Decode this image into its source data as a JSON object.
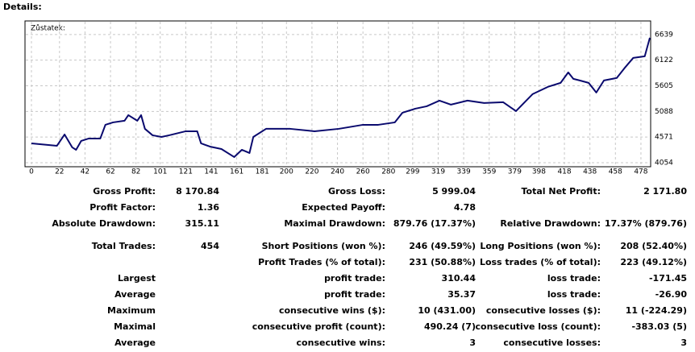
{
  "header": {
    "title": "Details:"
  },
  "chart_data": {
    "type": "line",
    "label": "Zůstatek:",
    "x": [
      0,
      20,
      26,
      32,
      35,
      39,
      45,
      54,
      58,
      64,
      73,
      76,
      83,
      86,
      89,
      95,
      102,
      108,
      121,
      130,
      133,
      140,
      149,
      159,
      165,
      171,
      174,
      184,
      203,
      222,
      241,
      260,
      272,
      285,
      291,
      301,
      310,
      320,
      329,
      342,
      355,
      370,
      380,
      393,
      405,
      415,
      421,
      425,
      430,
      437,
      443,
      449,
      459,
      465,
      472,
      481,
      485
    ],
    "series": [
      {
        "name": "Zůstatek",
        "color": "#0a0a6e",
        "values": [
          4444,
          4395,
          4623,
          4363,
          4314,
          4493,
          4542,
          4542,
          4818,
          4867,
          4900,
          5013,
          4900,
          5013,
          4737,
          4607,
          4574,
          4607,
          4688,
          4688,
          4444,
          4379,
          4330,
          4168,
          4314,
          4249,
          4574,
          4737,
          4737,
          4688,
          4737,
          4818,
          4818,
          4867,
          5062,
          5143,
          5192,
          5306,
          5225,
          5306,
          5257,
          5273,
          5095,
          5436,
          5583,
          5664,
          5875,
          5745,
          5713,
          5664,
          5469,
          5713,
          5762,
          5957,
          6168,
          6200,
          6574
        ]
      }
    ],
    "xlim": [
      0,
      485
    ],
    "xticks": [
      0,
      22,
      42,
      62,
      82,
      101,
      121,
      141,
      161,
      181,
      200,
      220,
      240,
      260,
      280,
      299,
      319,
      339,
      359,
      379,
      398,
      418,
      438,
      458,
      478
    ],
    "ylim": [
      4005,
      6880
    ],
    "yticks": [
      4054,
      4571,
      5088,
      5605,
      6122,
      6639
    ],
    "grid": true
  },
  "table": {
    "rows": [
      [
        "Gross Profit:",
        "8 170.84",
        "Gross Loss:",
        "5 999.04",
        "Total Net Profit:",
        "2 171.80"
      ],
      [
        "Profit Factor:",
        "1.36",
        "Expected Payoff:",
        "4.78",
        null,
        null
      ],
      [
        "Absolute Drawdown:",
        "315.11",
        "Maximal Drawdown:",
        "879.76 (17.37%)",
        "Relative Drawdown:",
        "17.37% (879.76)"
      ],
      [
        "Total Trades:",
        "454",
        "Short Positions (won %):",
        "246 (49.59%)",
        "Long Positions (won %):",
        "208 (52.40%)"
      ],
      [
        null,
        null,
        "Profit Trades (% of total):",
        "231 (50.88%)",
        "Loss trades (% of total):",
        "223 (49.12%)"
      ],
      [
        "Largest",
        null,
        "profit trade:",
        "310.44",
        "loss trade:",
        "-171.45"
      ],
      [
        "Average",
        null,
        "profit trade:",
        "35.37",
        "loss trade:",
        "-26.90"
      ],
      [
        "Maximum",
        null,
        "consecutive wins ($):",
        "10 (431.00)",
        "consecutive losses ($):",
        "11 (-224.29)"
      ],
      [
        "Maximal",
        null,
        "consecutive profit (count):",
        "490.24 (7)",
        "consecutive loss (count):",
        "-383.03 (5)"
      ],
      [
        "Average",
        null,
        "consecutive wins:",
        "3",
        "consecutive losses:",
        "3"
      ]
    ]
  }
}
